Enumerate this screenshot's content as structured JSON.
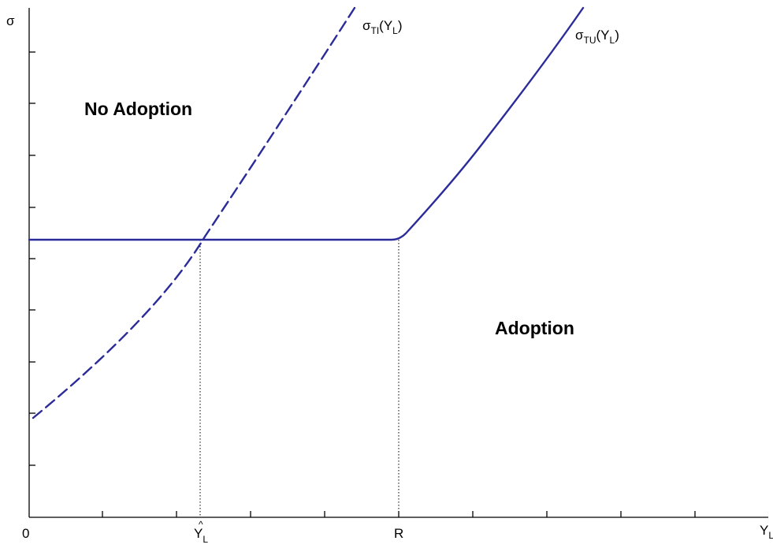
{
  "axes": {
    "y_label": "σ",
    "x_label": "Y",
    "x_label_sub": "L",
    "origin_label": "0",
    "x_marks": [
      {
        "main": "Y",
        "sub": "L",
        "hat": "^"
      },
      {
        "main": "R",
        "sub": "",
        "hat": ""
      }
    ]
  },
  "regions": {
    "upper": "No Adoption",
    "lower": "Adoption"
  },
  "curves": {
    "dashed": {
      "main": "σ",
      "sub": "TI",
      "arg_open": "(Y",
      "arg_sub": "L",
      "arg_close": ")"
    },
    "solid": {
      "main": "σ",
      "sub": "TU",
      "arg_open": "(Y",
      "arg_sub": "L",
      "arg_close": ")"
    }
  },
  "colors": {
    "curve": "#2b2b9a",
    "axis": "#000000"
  }
}
